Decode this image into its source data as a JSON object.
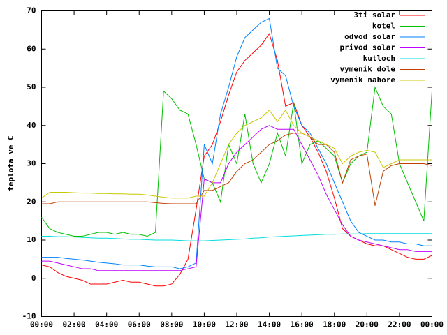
{
  "chart_data": {
    "type": "line",
    "ylabel": "teplota ve C",
    "legend": "top-right",
    "xlim": [
      0,
      24
    ],
    "xticks": [
      {
        "value": 0,
        "label": "00:00"
      },
      {
        "value": 2,
        "label": "02:00"
      },
      {
        "value": 4,
        "label": "04:00"
      },
      {
        "value": 6,
        "label": "06:00"
      },
      {
        "value": 8,
        "label": "08:00"
      },
      {
        "value": 10,
        "label": "10:00"
      },
      {
        "value": 12,
        "label": "12:00"
      },
      {
        "value": 14,
        "label": "14:00"
      },
      {
        "value": 16,
        "label": "16:00"
      },
      {
        "value": 18,
        "label": "18:00"
      },
      {
        "value": 20,
        "label": "20:00"
      },
      {
        "value": 22,
        "label": "22:00"
      },
      {
        "value": 24,
        "label": "00:00"
      }
    ],
    "ylim": [
      -10,
      70
    ],
    "yticks": [
      -10,
      0,
      10,
      20,
      30,
      40,
      50,
      60,
      70
    ],
    "x": [
      0,
      0.5,
      1,
      1.5,
      2,
      2.5,
      3,
      3.5,
      4,
      4.5,
      5,
      5.5,
      6,
      6.5,
      7,
      7.5,
      8,
      8.5,
      9,
      9.5,
      10,
      10.5,
      11,
      11.5,
      12,
      12.5,
      13,
      13.5,
      14,
      14.5,
      15,
      15.5,
      16,
      16.5,
      17,
      17.5,
      18,
      18.5,
      19,
      19.5,
      20,
      20.5,
      21,
      21.5,
      22,
      22.5,
      23,
      23.5,
      24
    ],
    "series": [
      {
        "name": "3ti solar",
        "color": "#ff0000",
        "values": [
          3.5,
          3,
          1.5,
          0.5,
          0,
          -0.5,
          -1.5,
          -1.5,
          -1.5,
          -1,
          -0.5,
          -1,
          -1,
          -1.5,
          -2,
          -2,
          -1.5,
          1,
          5,
          18,
          32,
          35,
          41,
          48,
          54,
          57,
          59,
          61,
          64,
          57,
          45,
          46,
          40,
          37,
          33,
          28,
          21,
          13,
          11,
          10,
          9,
          8.5,
          8.5,
          7.5,
          6.5,
          5.5,
          5,
          5,
          6
        ]
      },
      {
        "name": "kotel",
        "color": "#00c000",
        "values": [
          16,
          13,
          12,
          11.5,
          11,
          11,
          11.5,
          12,
          12,
          11.5,
          12,
          11.5,
          11.5,
          11,
          12,
          49,
          47,
          44,
          43,
          35,
          26,
          25,
          20,
          35,
          30,
          43,
          30,
          25,
          30,
          38,
          32,
          46,
          30,
          35,
          36,
          34,
          32,
          25,
          30,
          32,
          33,
          50,
          45,
          43,
          30,
          25,
          20,
          15,
          49
        ]
      },
      {
        "name": "odvod solar",
        "color": "#0080ff",
        "values": [
          5.5,
          5.5,
          5.5,
          5.2,
          5,
          4.8,
          4.5,
          4.2,
          4,
          3.8,
          3.5,
          3.5,
          3.5,
          3.2,
          3,
          3,
          3,
          2.5,
          3,
          4,
          35,
          30,
          43,
          50,
          58,
          63,
          65,
          67,
          68,
          55,
          53,
          45,
          40,
          38,
          34,
          30,
          25,
          20,
          15,
          12,
          11,
          10,
          10,
          9.5,
          9.5,
          9,
          9,
          8.5,
          8.5
        ]
      },
      {
        "name": "privod solar",
        "color": "#c000ff",
        "values": [
          4.5,
          4.5,
          4,
          3.5,
          3,
          2.5,
          2.5,
          2,
          2,
          2,
          2,
          2,
          2,
          2,
          2,
          2,
          2,
          2,
          2.5,
          3,
          26,
          25,
          25,
          30,
          33,
          35,
          37,
          39,
          40,
          39,
          39,
          39,
          35,
          31,
          27,
          22,
          18,
          14,
          11,
          10,
          9.5,
          9,
          8.5,
          8,
          7.5,
          7.5,
          7,
          7,
          7
        ]
      },
      {
        "name": "kutloch",
        "color": "#00dddd",
        "values": [
          11,
          11,
          10.9,
          10.9,
          10.8,
          10.7,
          10.6,
          10.5,
          10.5,
          10.4,
          10.3,
          10.2,
          10.2,
          10.1,
          10,
          10,
          10,
          9.9,
          9.8,
          9.8,
          9.8,
          9.9,
          10,
          10.1,
          10.2,
          10.3,
          10.5,
          10.6,
          10.8,
          10.9,
          11,
          11.1,
          11.2,
          11.3,
          11.4,
          11.5,
          11.5,
          11.6,
          11.6,
          11.6,
          11.7,
          11.7,
          11.7,
          11.7,
          11.7,
          11.7,
          11.7,
          11.7,
          11.7
        ]
      },
      {
        "name": "vymenik dole",
        "color": "#c04000",
        "values": [
          19.5,
          19.5,
          20,
          20,
          20,
          20,
          20,
          20,
          20,
          20,
          20,
          20,
          20,
          20,
          19.8,
          19.6,
          19.5,
          19.5,
          19.5,
          19.5,
          23,
          23,
          24,
          25,
          28,
          30,
          31,
          33,
          35,
          36,
          37.5,
          38,
          38,
          37,
          35,
          35,
          33,
          25,
          31,
          32,
          32.5,
          19,
          28,
          29.5,
          30,
          30,
          30,
          30,
          29.5
        ]
      },
      {
        "name": "vymenik nahore",
        "color": "#c8c800",
        "values": [
          21,
          22.5,
          22.5,
          22.5,
          22.4,
          22.3,
          22.3,
          22.2,
          22.2,
          22.1,
          22.1,
          22,
          22,
          21.8,
          21.5,
          21.2,
          21,
          21,
          21,
          21.5,
          21.5,
          25,
          30,
          35,
          38,
          40,
          41,
          42,
          44,
          41,
          44,
          40,
          38,
          37,
          36,
          35,
          34,
          30,
          32,
          33,
          33.5,
          33,
          29,
          30,
          31,
          31,
          31,
          31,
          31
        ]
      }
    ]
  }
}
